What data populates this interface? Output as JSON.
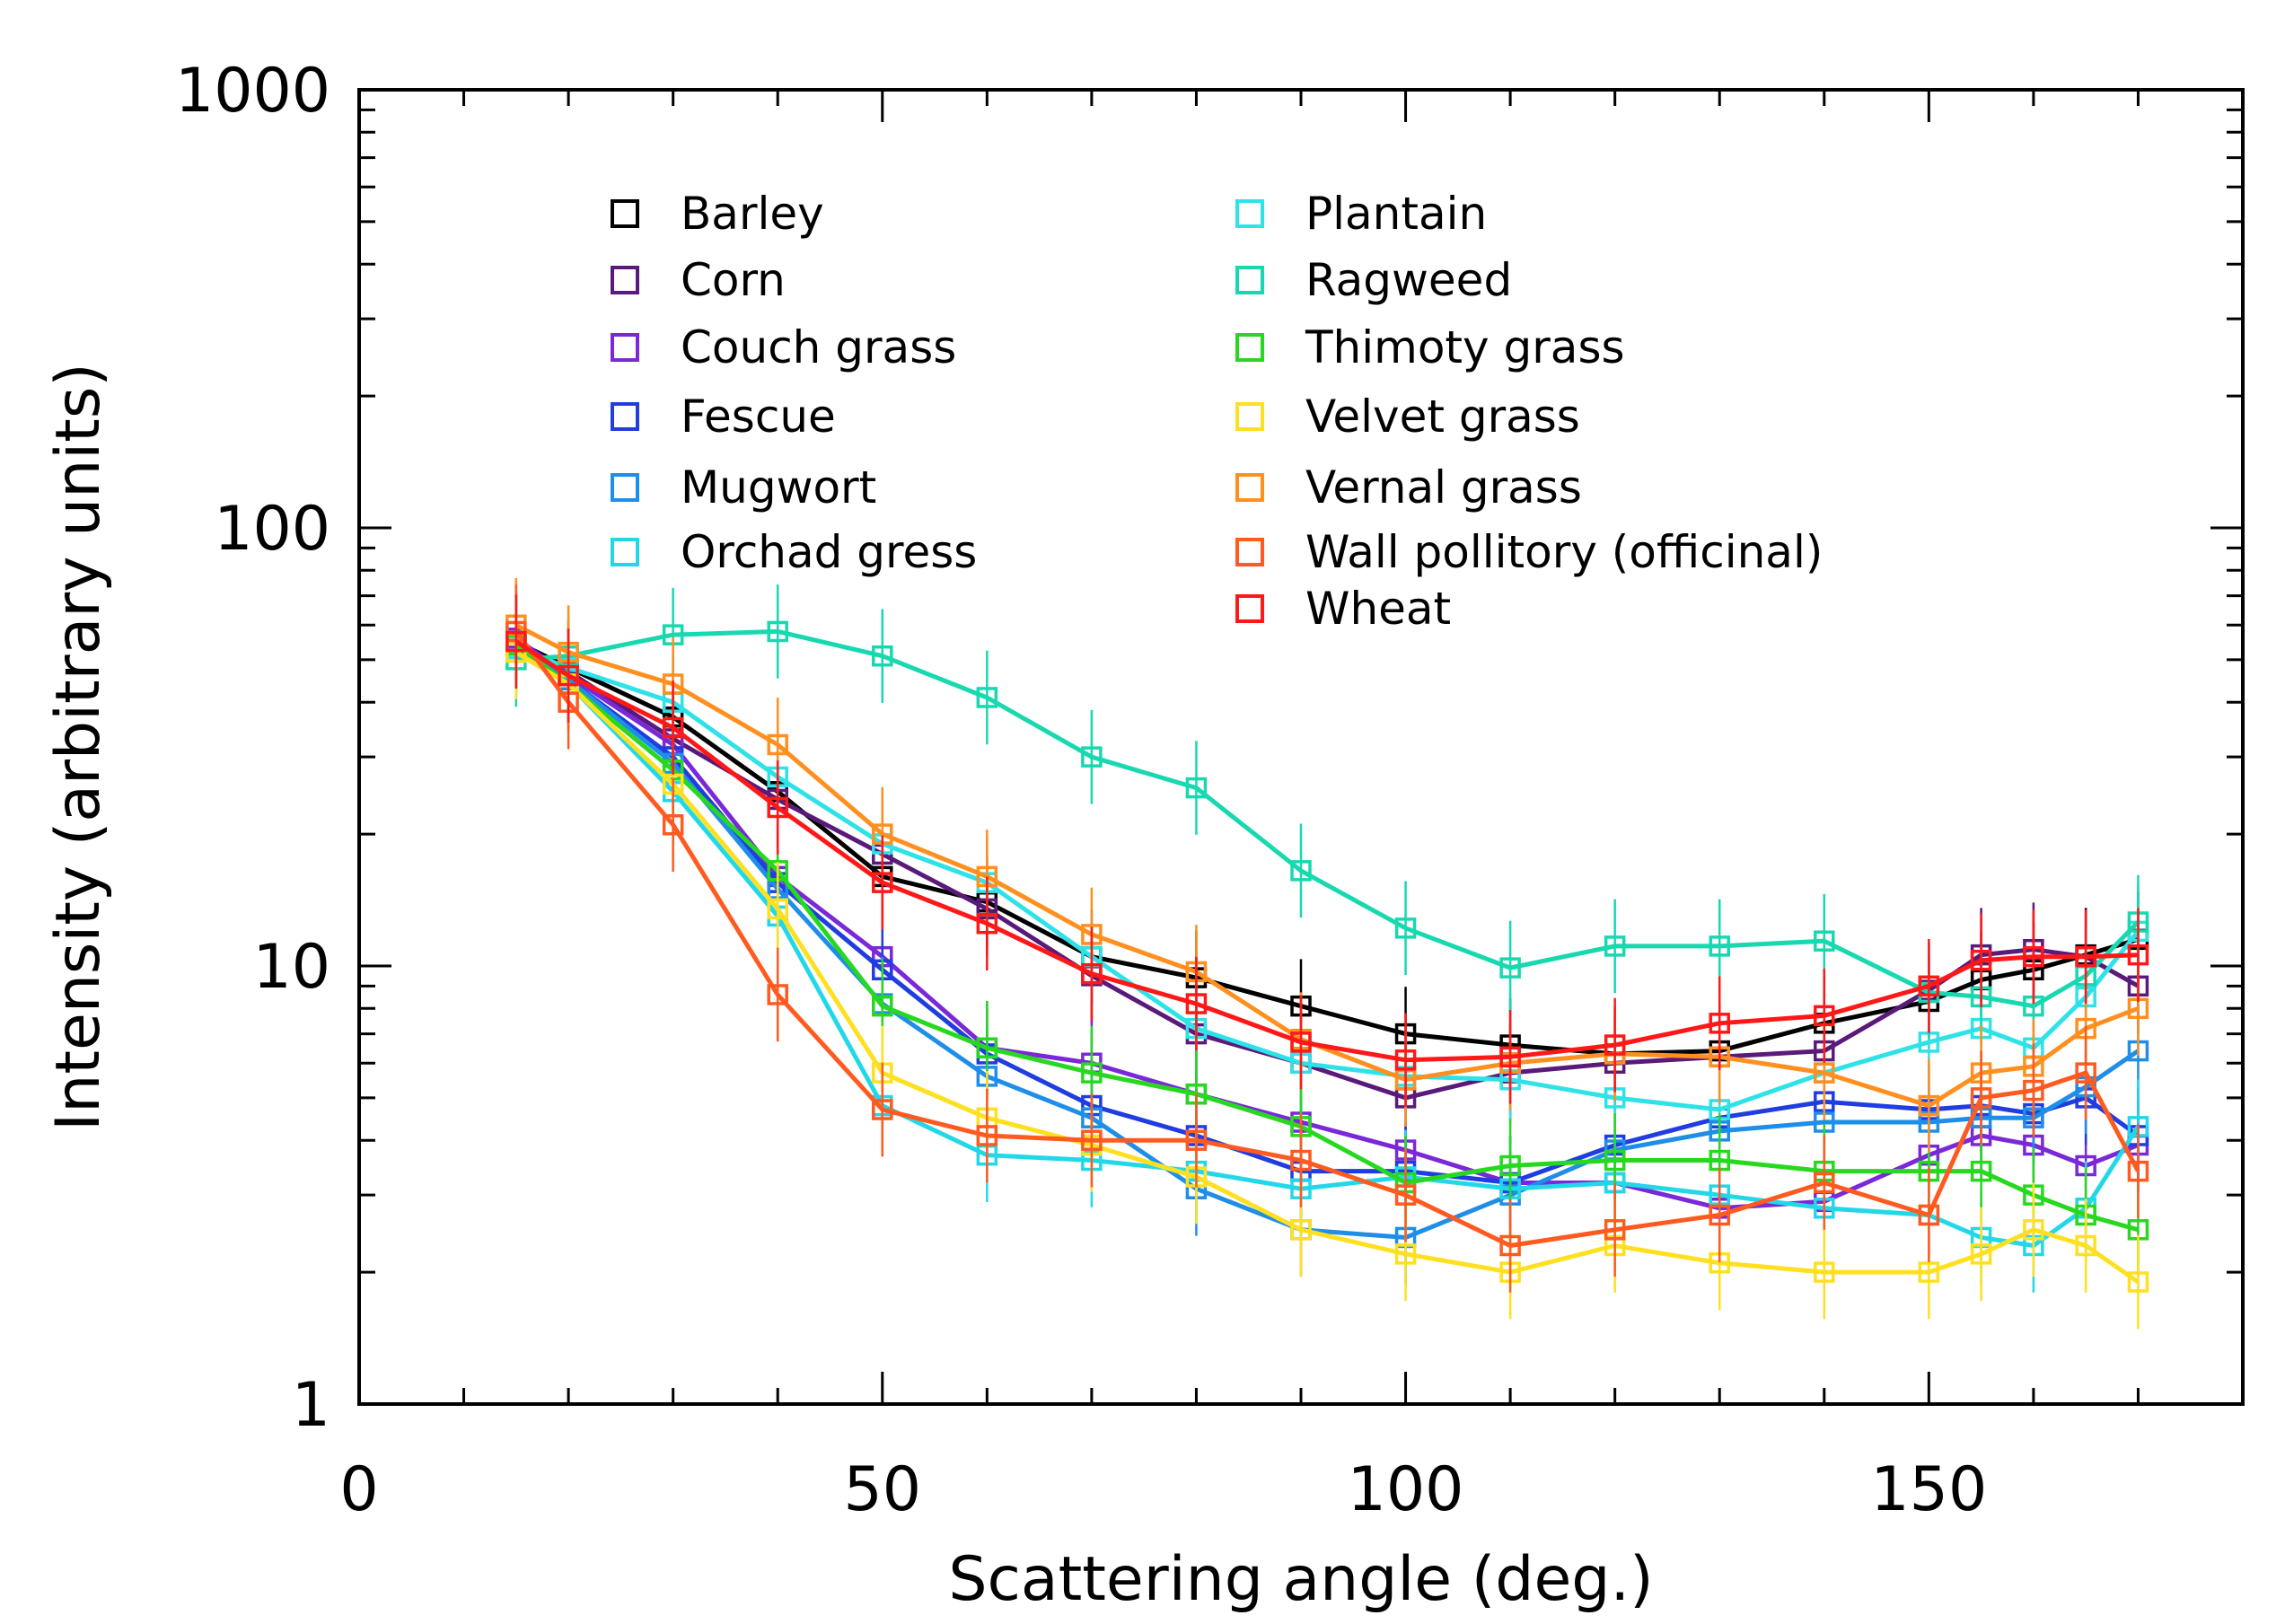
{
  "chart_data": {
    "type": "line",
    "title": "",
    "xlabel": "Scattering angle (deg.)",
    "ylabel": "Intensity (arbitrary units)",
    "xlim": [
      0,
      180
    ],
    "ylim": [
      1,
      1000
    ],
    "yscale": "log",
    "grid": false,
    "legend_position": "top",
    "x_ticks": [
      "0",
      "50",
      "100",
      "150"
    ],
    "y_ticks": [
      "1",
      "10",
      "100",
      "1000"
    ],
    "x": [
      15,
      20,
      30,
      40,
      50,
      60,
      70,
      80,
      90,
      100,
      110,
      120,
      130,
      140,
      150,
      155,
      160,
      165,
      170
    ],
    "series": [
      {
        "name": "Barley",
        "color": "#000000",
        "values": [
          55,
          48,
          37,
          25,
          16,
          14,
          10.5,
          9.4,
          8.1,
          7.0,
          6.6,
          6.3,
          6.4,
          7.4,
          8.3,
          9.3,
          9.8,
          10.6,
          11.5
        ]
      },
      {
        "name": "Corn",
        "color": "#5a1a7a",
        "values": [
          55,
          47,
          33,
          24,
          18,
          13.5,
          9.5,
          7.0,
          6.0,
          5.0,
          5.7,
          6.0,
          6.2,
          6.4,
          8.8,
          10.6,
          10.9,
          10.5,
          9.0
        ]
      },
      {
        "name": "Couch grass",
        "color": "#7a28d8",
        "values": [
          56,
          46,
          32,
          16,
          10.5,
          6.5,
          6.0,
          5.1,
          4.4,
          3.8,
          3.2,
          3.2,
          2.8,
          2.9,
          3.7,
          4.1,
          3.9,
          3.5,
          3.9
        ]
      },
      {
        "name": "Fescue",
        "color": "#1f3de0",
        "values": [
          54,
          45,
          30,
          15.5,
          9.8,
          6.3,
          4.8,
          4.1,
          3.4,
          3.4,
          3.2,
          3.9,
          4.5,
          4.9,
          4.7,
          4.8,
          4.6,
          5.0,
          4.1
        ]
      },
      {
        "name": "Mugwort",
        "color": "#1f8ee8",
        "values": [
          55,
          45,
          29,
          15,
          8.2,
          5.6,
          4.5,
          3.1,
          2.5,
          2.4,
          3.0,
          3.8,
          4.2,
          4.4,
          4.4,
          4.5,
          4.5,
          5.3,
          6.4
        ]
      },
      {
        "name": "Orchad gress",
        "color": "#22d8e8",
        "values": [
          52,
          44,
          25,
          13,
          4.8,
          3.7,
          3.6,
          3.4,
          3.1,
          3.3,
          3.1,
          3.2,
          3.0,
          2.8,
          2.7,
          2.4,
          2.3,
          2.8,
          4.3
        ]
      },
      {
        "name": "Plantain",
        "color": "#2ee2e8",
        "values": [
          53,
          48,
          40,
          27,
          19,
          15.5,
          10.5,
          7.2,
          6.0,
          5.6,
          5.5,
          5.0,
          4.7,
          5.7,
          6.7,
          7.2,
          6.5,
          8.5,
          12
        ]
      },
      {
        "name": "Ragweed",
        "color": "#18d8b0",
        "values": [
          50,
          51,
          57,
          58,
          51,
          41,
          30,
          25.5,
          16.5,
          12.2,
          9.9,
          11.1,
          11.1,
          11.4,
          8.7,
          8.5,
          8.1,
          9.5,
          12.6
        ]
      },
      {
        "name": "Thimoty grass",
        "color": "#28d820",
        "values": [
          54,
          44,
          28,
          16.5,
          8.1,
          6.5,
          5.7,
          5.1,
          4.3,
          3.2,
          3.5,
          3.6,
          3.6,
          3.4,
          3.4,
          3.4,
          3.0,
          2.7,
          2.5
        ]
      },
      {
        "name": "Velvet grass",
        "color": "#ffe020",
        "values": [
          52,
          44,
          26,
          13.5,
          5.7,
          4.5,
          3.9,
          3.3,
          2.5,
          2.2,
          2.0,
          2.3,
          2.1,
          2.0,
          2.0,
          2.2,
          2.5,
          2.3,
          1.9
        ]
      },
      {
        "name": "Vernal grass",
        "color": "#ff9020",
        "values": [
          60,
          52,
          44,
          32,
          20,
          16,
          11.8,
          9.7,
          6.8,
          5.5,
          6.0,
          6.3,
          6.2,
          5.7,
          4.8,
          5.7,
          5.9,
          7.2,
          8.0
        ]
      },
      {
        "name": "Wall pollitory (officinal)",
        "color": "#ff5a20",
        "values": [
          58,
          40,
          21,
          8.6,
          4.7,
          4.1,
          4.0,
          4.0,
          3.6,
          3.0,
          2.3,
          2.5,
          2.7,
          3.2,
          2.7,
          5.0,
          5.2,
          5.7,
          3.4
        ]
      },
      {
        "name": "Wheat",
        "color": "#ff1818",
        "values": [
          55,
          46,
          35,
          23,
          15.5,
          12.5,
          9.6,
          8.2,
          6.7,
          6.1,
          6.2,
          6.6,
          7.4,
          7.7,
          9.0,
          10.3,
          10.5,
          10.5,
          10.6
        ]
      }
    ]
  }
}
